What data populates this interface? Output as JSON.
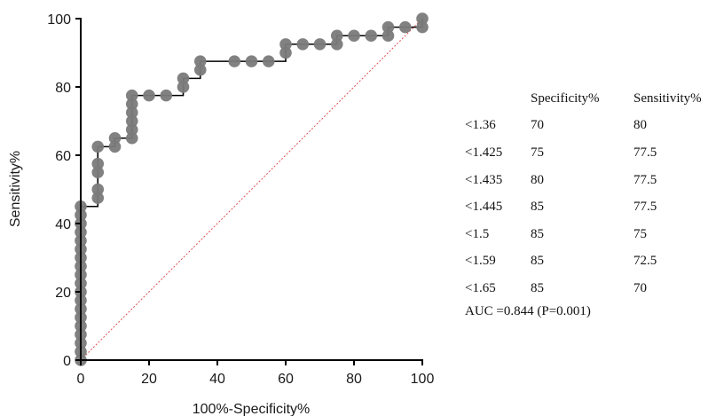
{
  "chart_data": {
    "type": "line",
    "xlabel": "100%-Specificity%",
    "ylabel": "Sensitivity%",
    "xlim": [
      0,
      100
    ],
    "ylim": [
      0,
      100
    ],
    "xticks": [
      "0",
      "20",
      "40",
      "60",
      "80",
      "100"
    ],
    "yticks": [
      "0",
      "20",
      "40",
      "60",
      "80",
      "100"
    ],
    "grid": false,
    "series": [
      {
        "type": "step",
        "color": "#000000",
        "marker_color": "#7a7a7a",
        "points": [
          [
            0,
            0
          ],
          [
            0,
            2.5
          ],
          [
            0,
            5
          ],
          [
            0,
            7.5
          ],
          [
            0,
            10
          ],
          [
            0,
            12.5
          ],
          [
            0,
            15
          ],
          [
            0,
            17.5
          ],
          [
            0,
            20
          ],
          [
            0,
            22.5
          ],
          [
            0,
            25
          ],
          [
            0,
            27.5
          ],
          [
            0,
            30
          ],
          [
            0,
            32.5
          ],
          [
            0,
            35
          ],
          [
            0,
            37.5
          ],
          [
            0,
            40
          ],
          [
            0,
            42.5
          ],
          [
            0,
            45
          ],
          [
            5,
            47.5
          ],
          [
            5,
            50
          ],
          [
            5,
            55
          ],
          [
            5,
            57.5
          ],
          [
            5,
            62.5
          ],
          [
            10,
            62.5
          ],
          [
            10,
            65
          ],
          [
            15,
            65
          ],
          [
            15,
            67.5
          ],
          [
            15,
            70
          ],
          [
            15,
            72.5
          ],
          [
            15,
            75
          ],
          [
            15,
            77.5
          ],
          [
            20,
            77.5
          ],
          [
            25,
            77.5
          ],
          [
            30,
            80
          ],
          [
            30,
            82.5
          ],
          [
            35,
            85
          ],
          [
            35,
            87.5
          ],
          [
            45,
            87.5
          ],
          [
            50,
            87.5
          ],
          [
            55,
            87.5
          ],
          [
            60,
            90
          ],
          [
            60,
            92.5
          ],
          [
            65,
            92.5
          ],
          [
            70,
            92.5
          ],
          [
            75,
            92.5
          ],
          [
            75,
            95
          ],
          [
            80,
            95
          ],
          [
            85,
            95
          ],
          [
            90,
            95
          ],
          [
            90,
            97.5
          ],
          [
            95,
            97.5
          ],
          [
            100,
            97.5
          ],
          [
            100,
            100
          ]
        ]
      },
      {
        "name": "",
        "type": "reference",
        "color": "#e05050",
        "points": [
          [
            0,
            0
          ],
          [
            100,
            100
          ]
        ]
      }
    ]
  },
  "table": {
    "header": [
      "",
      "Specificity%",
      "Sensitivity%"
    ],
    "rows": [
      [
        "<1.36",
        "70",
        "80"
      ],
      [
        "<1.425",
        "75",
        "77.5"
      ],
      [
        "<1.435",
        "80",
        "77.5"
      ],
      [
        "<1.445",
        "85",
        "77.5"
      ],
      [
        "<1.5",
        "85",
        "75"
      ],
      [
        "<1.59",
        "85",
        "72.5"
      ],
      [
        "<1.65",
        "85",
        "70"
      ]
    ],
    "auc": "AUC =0.844 (P=0.001)"
  }
}
